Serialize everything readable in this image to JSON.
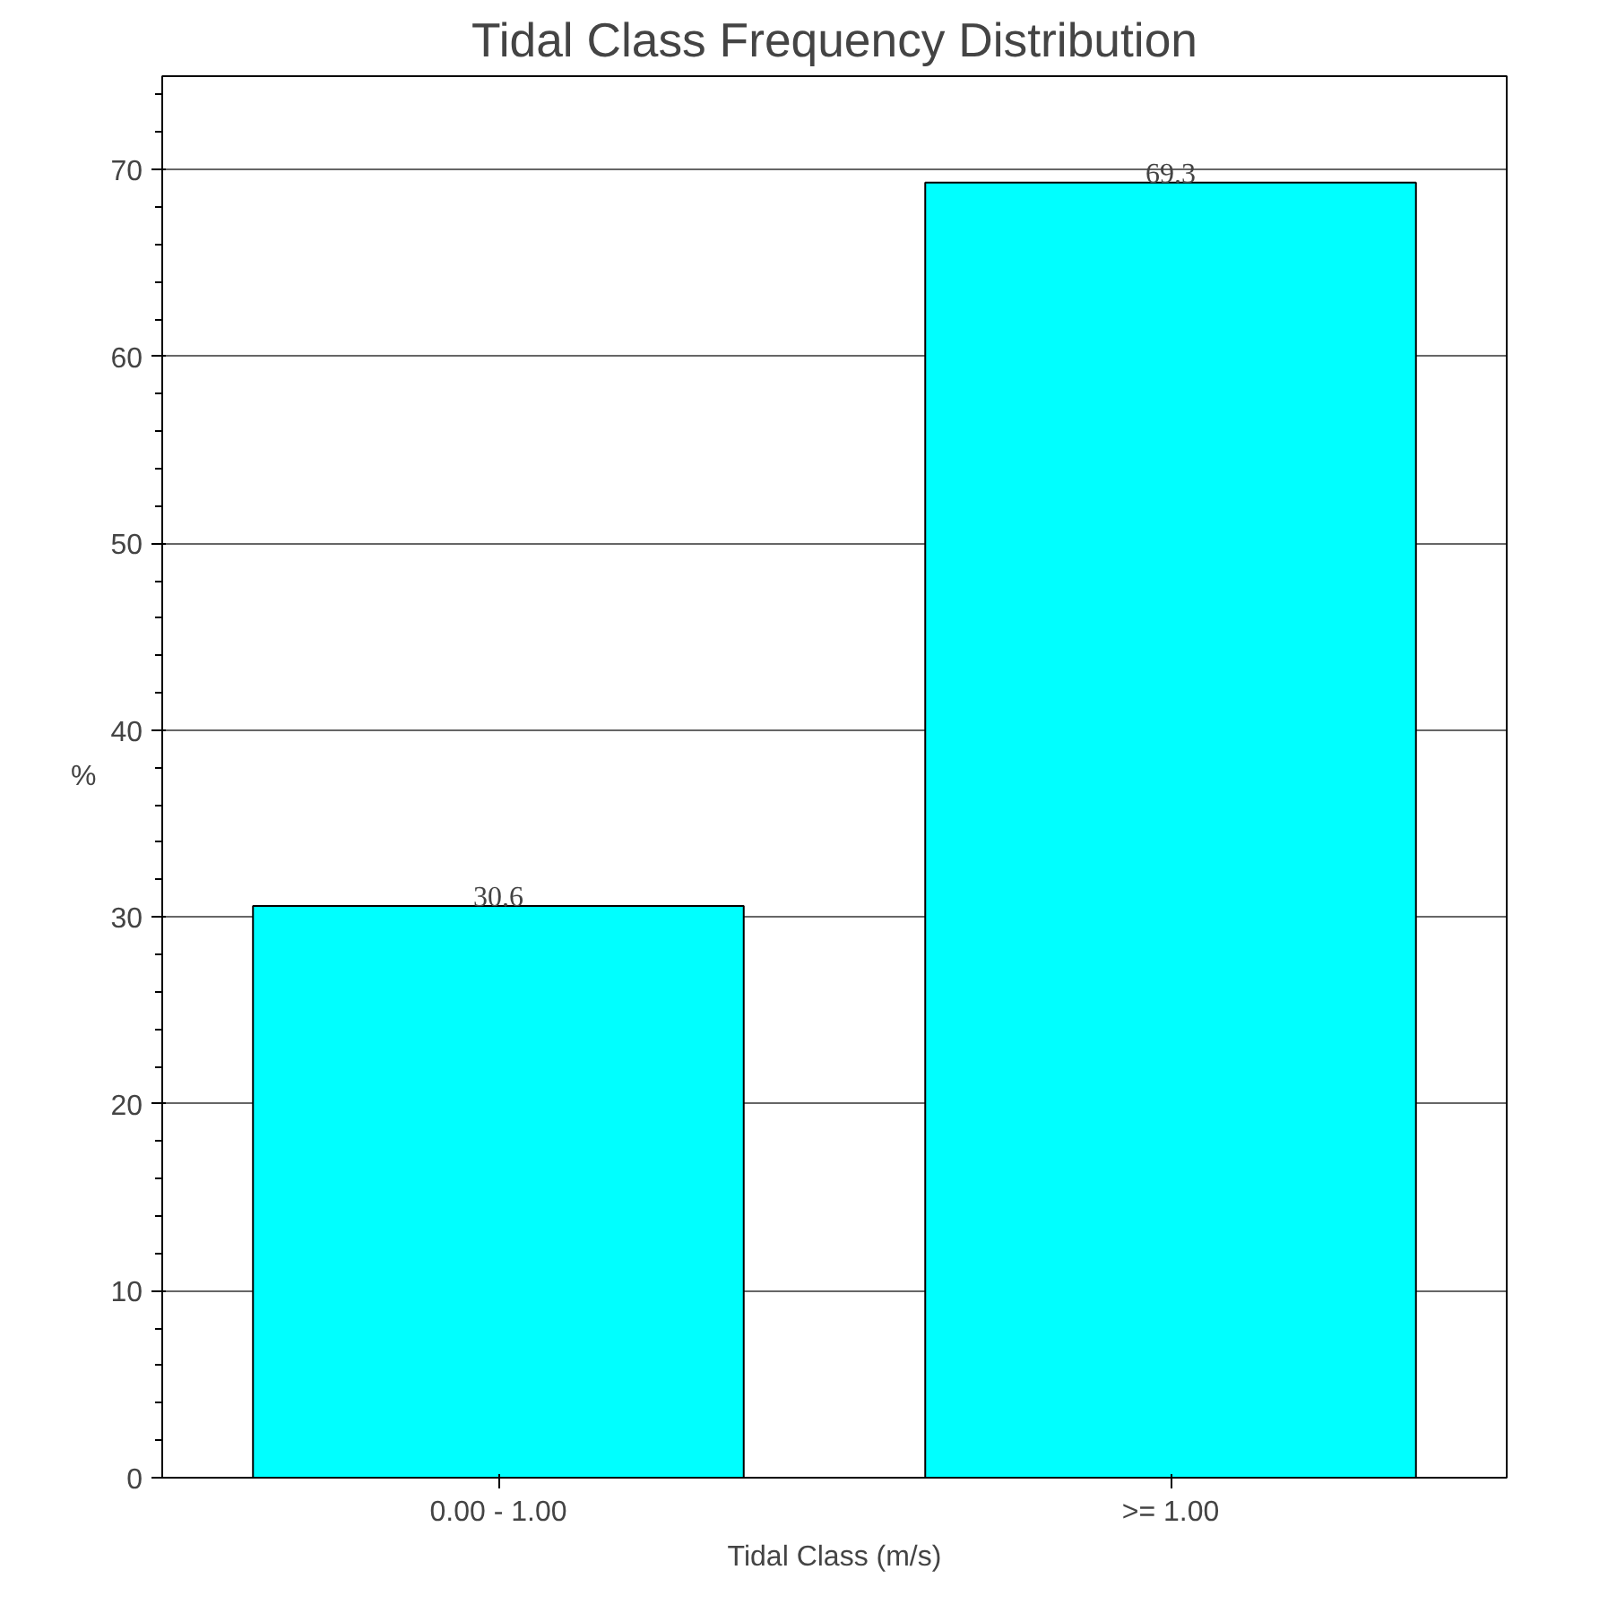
{
  "chart_data": {
    "type": "bar",
    "title": "Tidal Class Frequency Distribution",
    "categories": [
      "0.00 - 1.00",
      ">= 1.00"
    ],
    "values": [
      30.6,
      69.3
    ],
    "color": "#00ffff",
    "xlabel": "Tidal Class (m/s)",
    "ylabel": "%",
    "ylim": [
      0,
      75
    ],
    "yticks": [
      0,
      10,
      20,
      30,
      40,
      50,
      60,
      70
    ],
    "grid": "y",
    "data_labels": true
  }
}
